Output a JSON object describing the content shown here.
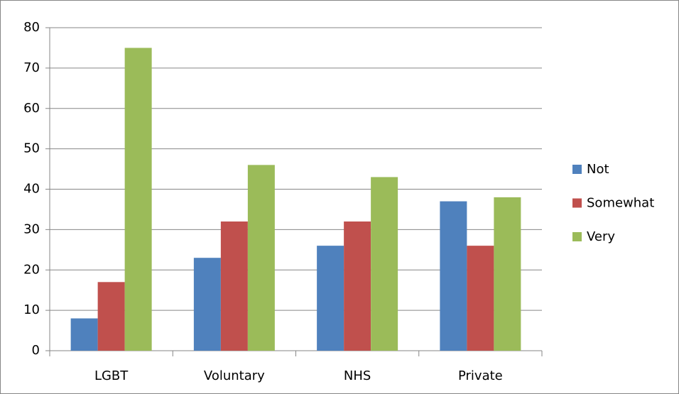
{
  "chart_data": {
    "type": "bar",
    "categories": [
      "LGBT",
      "Voluntary",
      "NHS",
      "Private"
    ],
    "series": [
      {
        "name": "Not",
        "color": "#4f81bd",
        "values": [
          8,
          23,
          26,
          37
        ]
      },
      {
        "name": "Somewhat",
        "color": "#c0504d",
        "values": [
          17,
          32,
          32,
          26
        ]
      },
      {
        "name": "Very",
        "color": "#9bbb59",
        "values": [
          75,
          46,
          43,
          38
        ]
      }
    ],
    "ylim": [
      0,
      80
    ],
    "yticks": [
      0,
      10,
      20,
      30,
      40,
      50,
      60,
      70,
      80
    ],
    "grid": true,
    "legend": "right"
  }
}
